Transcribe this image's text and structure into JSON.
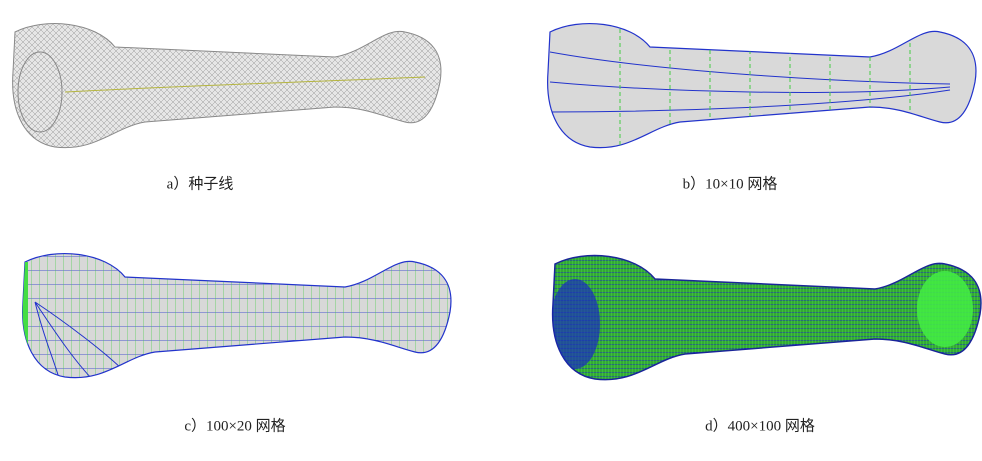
{
  "figure": {
    "panels": [
      {
        "caption": "a）种子线"
      },
      {
        "caption": "b）10×10 网格"
      },
      {
        "caption": "c）100×20 网格"
      },
      {
        "caption": "d）400×100 网格"
      }
    ]
  }
}
